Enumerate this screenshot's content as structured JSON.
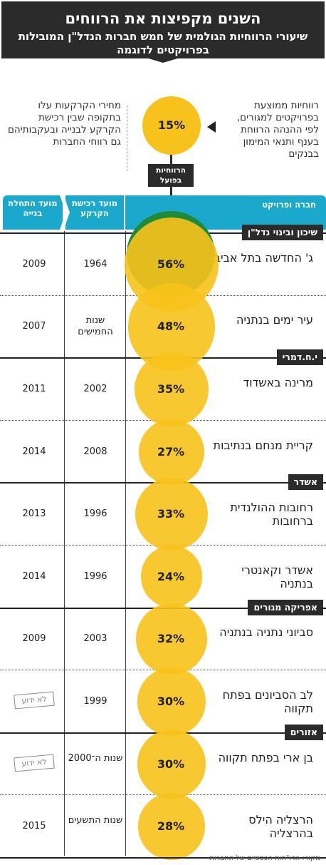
{
  "header": {
    "title": "השנים מקפיצות את הרווחים",
    "subtitle": "שיעורי הרווחיות הגולמית של חמש חברות הנדל\"ן המובילות בפרויקטים לדוגמה"
  },
  "notes": {
    "right": "רווחיות ממוצעת בפרויקטים למגורים, לפי ההנהה הרווחת בענף ותנאי המימון בבנקים",
    "left": "מחירי הקרקעות עלו בתקופה שבין רכישת הקרקע לבנייה ובעקבותיהם גם רווחי החברות",
    "average_pct": "15%",
    "actual_label": "הרווחיות בפועל"
  },
  "columns": {
    "project": "חברה ופרויקט",
    "land_purchase": "מועד רכישת הקרקע",
    "construction_start": "מועד התחלת בנייה"
  },
  "unknown_label": "לא ידוע",
  "source": "מקור: הדו\"חות הכספיים של החברות",
  "colors": {
    "bubble": "#f7c21b",
    "header": "#1aa8cc",
    "banner": "#2b2b2b",
    "highlight": "#1e8a3a"
  },
  "chart_data": {
    "type": "table",
    "title": "השנים מקפיצות את הרווחים",
    "average_profitability": 15,
    "companies": [
      {
        "name": "שיכון ובינוי נדל\"ן",
        "projects": [
          {
            "name": "ג' החדשה בתל אביב",
            "profit_pct": 56,
            "profit_label": "56%",
            "land_purchase": "1964",
            "construction_start": "2009"
          },
          {
            "name": "עיר ימים בנתניה",
            "profit_pct": 48,
            "profit_label": "48%",
            "land_purchase": "שנות החמישים",
            "construction_start": "2007"
          }
        ]
      },
      {
        "name": "י.ח.דמרי",
        "projects": [
          {
            "name": "מרינה באשדוד",
            "profit_pct": 35,
            "profit_label": "35%",
            "land_purchase": "2002",
            "construction_start": "2011"
          },
          {
            "name": "קריית מנחם בנתיבות",
            "profit_pct": 27,
            "profit_label": "27%",
            "land_purchase": "2008",
            "construction_start": "2014"
          }
        ]
      },
      {
        "name": "אשדר",
        "projects": [
          {
            "name": "רחובות ההולנדית ברחובות",
            "profit_pct": 33,
            "profit_label": "33%",
            "land_purchase": "1996",
            "construction_start": "2013"
          },
          {
            "name": "אשדר וקאנטרי בנתניה",
            "profit_pct": 24,
            "profit_label": "24%",
            "land_purchase": "1996",
            "construction_start": "2014"
          }
        ]
      },
      {
        "name": "אפריקה מגורים",
        "projects": [
          {
            "name": "סביוני נתניה בנתניה",
            "profit_pct": 32,
            "profit_label": "32%",
            "land_purchase": "2003",
            "construction_start": "2009"
          },
          {
            "name": "לב הסביונים בפתח תקווה",
            "profit_pct": 30,
            "profit_label": "30%",
            "land_purchase": "1999",
            "construction_start": null
          }
        ]
      },
      {
        "name": "אזורים",
        "projects": [
          {
            "name": "בן ארי בפתח תקווה",
            "profit_pct": 30,
            "profit_label": "30%",
            "land_purchase": "שנות ה־2000",
            "construction_start": null
          },
          {
            "name": "הרצליה הילס בהרצליה",
            "profit_pct": 28,
            "profit_label": "28%",
            "land_purchase": "שנות התשעים",
            "construction_start": "2015"
          }
        ]
      }
    ]
  }
}
